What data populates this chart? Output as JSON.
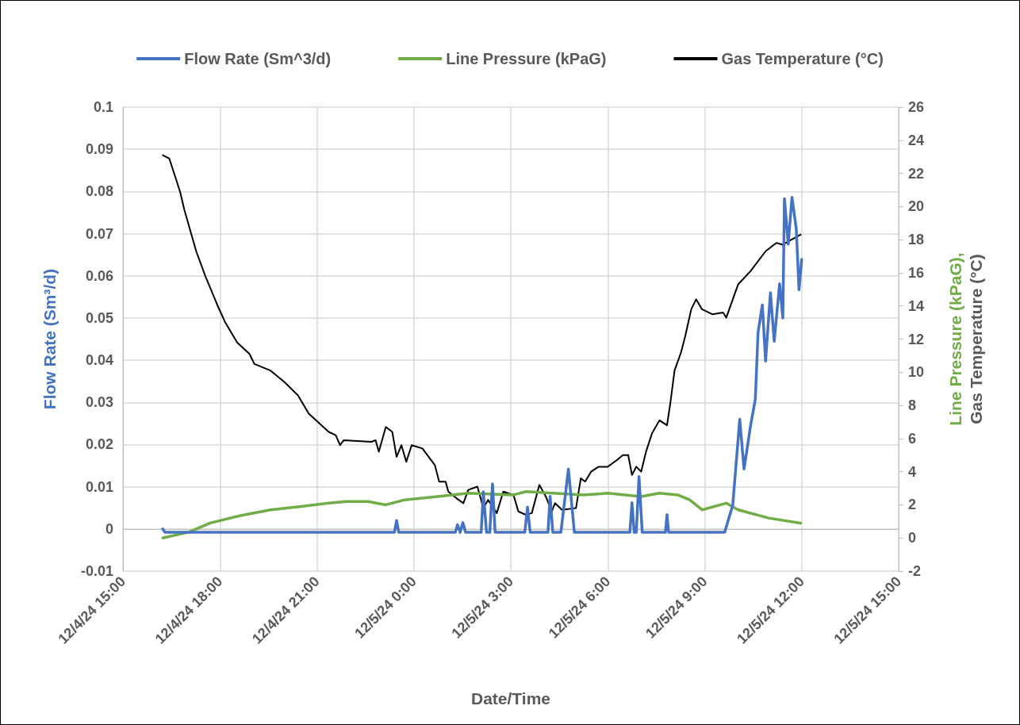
{
  "chart_data": {
    "type": "line",
    "xlabel": "Date/Time",
    "ylabel": "Flow Rate (Sm³/d)",
    "y2label": "Line Pressure (kPaG), Gas Temperature (°C)",
    "xlim": [
      "--12-04T15:00",
      "--12-05T15:00"
    ],
    "xticks": [
      {
        "value": "--12-04T15:00",
        "label": "12/4/24 15:00"
      },
      {
        "value": "--12-04T18:00",
        "label": "12/4/24 18:00"
      },
      {
        "value": "--12-04T21:00",
        "label": "12/4/24 21:00"
      },
      {
        "value": "--12-05T00:00",
        "label": "12/5/24 0:00"
      },
      {
        "value": "--12-05T03:00",
        "label": "12/5/24 3:00"
      },
      {
        "value": "--12-05T06:00",
        "label": "12/5/24 6:00"
      },
      {
        "value": "--12-05T09:00",
        "label": "12/5/24 9:00"
      },
      {
        "value": "--12-05T12:00",
        "label": "12/5/24 12:00"
      },
      {
        "value": "--12-05T15:00",
        "label": "12/5/24 15:00"
      }
    ],
    "ylim": [
      -0.01,
      0.1
    ],
    "yticks": [
      -0.01,
      0,
      0.01,
      0.02,
      0.03,
      0.04,
      0.05,
      0.06,
      0.07,
      0.08,
      0.09,
      0.1
    ],
    "y2lim": [
      -2,
      26
    ],
    "y2ticks": [
      -2,
      0,
      2,
      4,
      6,
      8,
      10,
      12,
      14,
      16,
      18,
      20,
      22,
      24,
      26
    ],
    "grid": true,
    "legend": "top",
    "marker": "none",
    "line_style": "solid",
    "series": [
      {
        "name": "Flow Rate (Sm^3/d)",
        "color": "#4472c4",
        "x": [
          "--12-04T16:14",
          "--12-04T16:18",
          "--12-04T23:24",
          "--12-04T23:28",
          "--12-04T23:32",
          "--12-05T01:17",
          "--12-05T01:21",
          "--12-05T01:26",
          "--12-05T01:31",
          "--12-05T01:36",
          "--12-05T02:05",
          "--12-05T02:09",
          "--12-05T02:15",
          "--12-05T02:21",
          "--12-05T02:26",
          "--12-05T02:31",
          "--12-05T03:26",
          "--12-05T03:31",
          "--12-05T03:36",
          "--12-05T04:09",
          "--12-05T04:13",
          "--12-05T04:18",
          "--12-05T04:33",
          "--12-05T04:47",
          "--12-05T04:58",
          "--12-05T06:41",
          "--12-05T06:45",
          "--12-05T06:49",
          "--12-05T06:53",
          "--12-05T06:58",
          "--12-05T07:04",
          "--12-05T07:47",
          "--12-05T07:50",
          "--12-05T07:53",
          "--12-05T09:37",
          "--12-05T09:52",
          "--12-05T10:05",
          "--12-05T10:13",
          "--12-05T10:25",
          "--12-05T10:34",
          "--12-05T10:39",
          "--12-05T10:47",
          "--12-05T10:53",
          "--12-05T11:02",
          "--12-05T11:09",
          "--12-05T11:19",
          "--12-05T11:25",
          "--12-05T11:28",
          "--12-05T11:35",
          "--12-05T11:42",
          "--12-05T11:50",
          "--12-05T11:55",
          "--12-05T12:00"
        ],
        "values": [
          0,
          -0.0008,
          -0.0008,
          0.002,
          -0.0008,
          -0.0008,
          0.001,
          -0.0008,
          0.0015,
          -0.0008,
          -0.0008,
          0.0088,
          -0.0008,
          -0.0008,
          0.0107,
          -0.0008,
          -0.0008,
          0.0052,
          -0.0008,
          -0.0008,
          0.0077,
          -0.0008,
          -0.0008,
          0.0142,
          -0.0008,
          -0.0008,
          0.0062,
          -0.0008,
          -0.0008,
          0.0124,
          -0.0008,
          -0.0008,
          0.0034,
          -0.0008,
          -0.0008,
          0.0056,
          0.026,
          0.0142,
          0.0244,
          0.0308,
          0.0466,
          0.0531,
          0.0398,
          0.056,
          0.0445,
          0.0581,
          0.05,
          0.0783,
          0.0675,
          0.0786,
          0.0711,
          0.0567,
          0.0639
        ]
      },
      {
        "name": "Line Pressure (kPaG)",
        "color": "#70ad47",
        "axis": "y2",
        "x": [
          "--12-04T16:14",
          "--12-04T17:02",
          "--12-04T17:42",
          "--12-04T18:38",
          "--12-04T19:34",
          "--12-04T20:31",
          "--12-04T21:22",
          "--12-04T21:55",
          "--12-04T22:35",
          "--12-04T23:08",
          "--12-04T23:43",
          "--12-05T00:44",
          "--12-05T01:41",
          "--12-05T03:05",
          "--12-05T03:28",
          "--12-05T05:15",
          "--12-05T06:00",
          "--12-05T07:02",
          "--12-05T07:36",
          "--12-05T08:10",
          "--12-05T08:32",
          "--12-05T08:55",
          "--12-05T09:40",
          "--12-05T10:02",
          "--12-05T10:59",
          "--12-05T11:58"
        ],
        "values": [
          0,
          0.35,
          0.9,
          1.35,
          1.7,
          1.9,
          2.1,
          2.2,
          2.2,
          2,
          2.3,
          2.5,
          2.7,
          2.6,
          2.8,
          2.6,
          2.7,
          2.5,
          2.7,
          2.6,
          2.3,
          1.7,
          2.1,
          1.7,
          1.2,
          0.9
        ]
      },
      {
        "name": "Gas Temperature (°C)",
        "color": "#000000",
        "axis": "y2",
        "x": [
          "--12-04T16:14",
          "--12-04T16:26",
          "--12-04T16:46",
          "--12-04T16:54",
          "--12-04T17:16",
          "--12-04T17:33",
          "--12-04T17:56",
          "--12-04T18:10",
          "--12-04T18:32",
          "--12-04T18:55",
          "--12-04T19:04",
          "--12-04T19:34",
          "--12-04T20:00",
          "--12-04T20:25",
          "--12-04T20:45",
          "--12-04T21:22",
          "--12-04T21:35",
          "--12-04T21:43",
          "--12-04T21:50",
          "--12-04T22:41",
          "--12-04T22:49",
          "--12-04T22:55",
          "--12-04T23:08",
          "--12-04T23:20",
          "--12-04T23:28",
          "--12-04T23:37",
          "--12-04T23:46",
          "--12-04T23:56",
          "--12-05T00:16",
          "--12-05T00:39",
          "--12-05T00:47",
          "--12-05T00:59",
          "--12-05T01:04",
          "--12-05T01:19",
          "--12-05T01:32",
          "--12-05T01:41",
          "--12-05T01:58",
          "--12-05T02:09",
          "--12-05T02:18",
          "--12-05T02:34",
          "--12-05T02:46",
          "--12-05T03:05",
          "--12-05T03:14",
          "--12-05T03:28",
          "--12-05T03:39",
          "--12-05T03:53",
          "--12-05T04:05",
          "--12-05T04:16",
          "--12-05T04:22",
          "--12-05T04:35",
          "--12-05T05:01",
          "--12-05T05:10",
          "--12-05T05:18",
          "--12-05T05:29",
          "--12-05T05:43",
          "--12-05T06:00",
          "--12-05T06:17",
          "--12-05T06:28",
          "--12-05T06:38",
          "--12-05T06:45",
          "--12-05T06:53",
          "--12-05T07:02",
          "--12-05T07:11",
          "--12-05T07:22",
          "--12-05T07:36",
          "--12-05T07:50",
          "--12-05T07:56",
          "--12-05T08:04",
          "--12-05T08:16",
          "--12-05T08:24",
          "--12-05T08:35",
          "--12-05T08:44",
          "--12-05T08:55",
          "--12-05T09:14",
          "--12-05T09:34",
          "--12-05T09:40",
          "--12-05T10:02",
          "--12-05T10:25",
          "--12-05T10:53",
          "--12-05T11:13",
          "--12-05T11:25",
          "--12-05T11:41",
          "--12-05T11:58"
        ],
        "values": [
          23.1,
          22.9,
          20.9,
          19.8,
          17.3,
          15.8,
          14,
          13,
          11.8,
          11.1,
          10.5,
          10.1,
          9.4,
          8.6,
          7.5,
          6.4,
          6.2,
          5.6,
          5.9,
          5.8,
          5.9,
          5.2,
          6.7,
          6.4,
          4.9,
          5.6,
          4.6,
          5.6,
          5.4,
          4.4,
          3.4,
          3.4,
          2.8,
          2.4,
          2.1,
          2.9,
          3.1,
          1.8,
          2.3,
          1.5,
          2.8,
          2.6,
          1.6,
          1.4,
          1.5,
          3.2,
          2.5,
          1.6,
          2.1,
          1.7,
          1.8,
          3.6,
          3.4,
          4,
          4.3,
          4.3,
          4.7,
          5,
          5,
          3.8,
          4.3,
          4,
          5.2,
          6.3,
          7.1,
          6.8,
          8.1,
          10.1,
          11.2,
          12.2,
          13.8,
          14.4,
          13.8,
          13.5,
          13.6,
          13.3,
          15.3,
          16.1,
          17.3,
          17.8,
          17.7,
          18,
          18.3
        ]
      }
    ]
  }
}
